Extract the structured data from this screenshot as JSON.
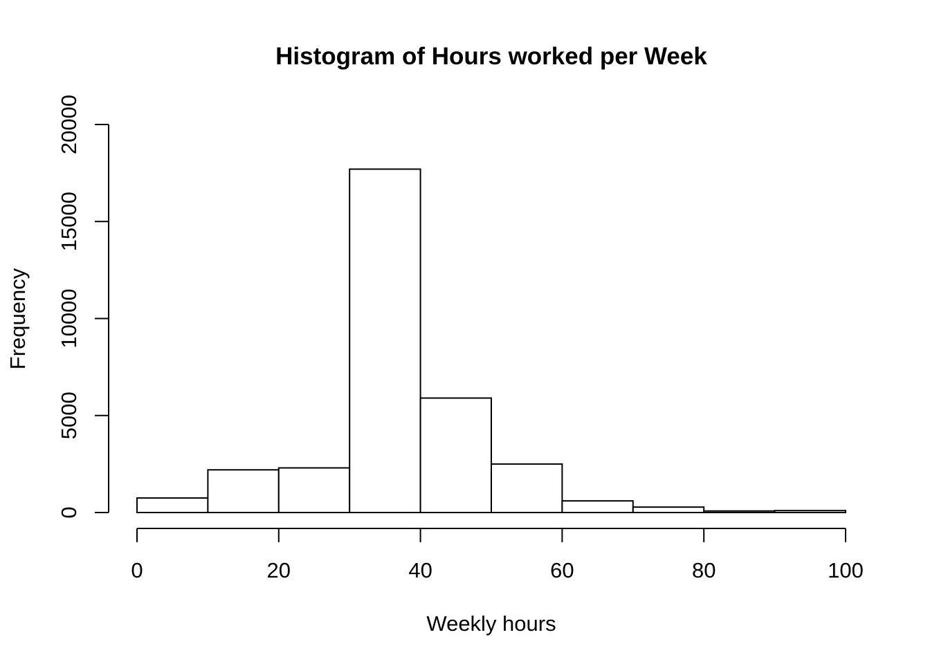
{
  "chart_data": {
    "type": "bar",
    "title": "Histogram of Hours worked per Week",
    "xlabel": "Weekly hours",
    "ylabel": "Frequency",
    "bins": [
      {
        "start": 0,
        "end": 10,
        "count": 750
      },
      {
        "start": 10,
        "end": 20,
        "count": 2200
      },
      {
        "start": 20,
        "end": 30,
        "count": 2300
      },
      {
        "start": 30,
        "end": 40,
        "count": 17700
      },
      {
        "start": 40,
        "end": 50,
        "count": 5900
      },
      {
        "start": 50,
        "end": 60,
        "count": 2500
      },
      {
        "start": 60,
        "end": 70,
        "count": 600
      },
      {
        "start": 70,
        "end": 80,
        "count": 280
      },
      {
        "start": 80,
        "end": 90,
        "count": 80
      },
      {
        "start": 90,
        "end": 100,
        "count": 100
      }
    ],
    "xlim": [
      0,
      100
    ],
    "ylim": [
      0,
      20000
    ],
    "xticks": [
      0,
      20,
      40,
      60,
      80,
      100
    ],
    "yticks": [
      0,
      5000,
      10000,
      15000,
      20000
    ],
    "grid": false,
    "legend": "none",
    "bar_fill": "#ffffff",
    "bar_stroke": "#000000"
  }
}
